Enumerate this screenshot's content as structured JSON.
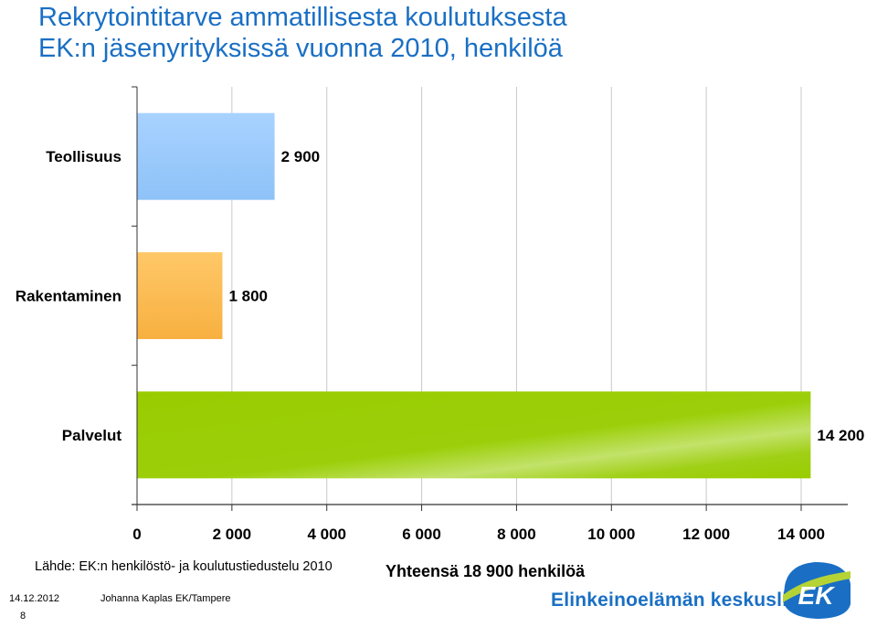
{
  "title": {
    "line1": "Rekrytointitarve ammatillisesta koulutuksesta",
    "line2": "EK:n jäsenyrityksissä vuonna 2010, henkilöä"
  },
  "chart_data": {
    "type": "bar",
    "orientation": "horizontal",
    "categories": [
      "Teollisuus",
      "Rakentaminen",
      "Palvelut"
    ],
    "values": [
      2900,
      1800,
      14200
    ],
    "data_labels": [
      "2 900",
      "1 800",
      "14 200"
    ],
    "bar_colors": [
      "#99ccff",
      "#ffbb55",
      "#99cc00"
    ],
    "xlim": [
      0,
      14000
    ],
    "xticks": [
      0,
      2000,
      4000,
      6000,
      8000,
      10000,
      12000,
      14000
    ],
    "xtick_labels": [
      "0",
      "2 000",
      "4 000",
      "6 000",
      "8 000",
      "10 000",
      "12 000",
      "14 000"
    ],
    "grid": "vertical",
    "legend": "none"
  },
  "source": "Lähde: EK:n henkilöstö- ja koulutustiedustelu 2010",
  "total": "Yhteensä 18 900 henkilöä",
  "footer": {
    "date": "14.12.2012",
    "author": "Johanna Kaplas EK/Tampere",
    "page": "8"
  },
  "organization": "Elinkeinoelämän keskusliitto",
  "logo": {
    "text": "EK",
    "color": "#1a6fc4",
    "accent": "#b5d335"
  }
}
